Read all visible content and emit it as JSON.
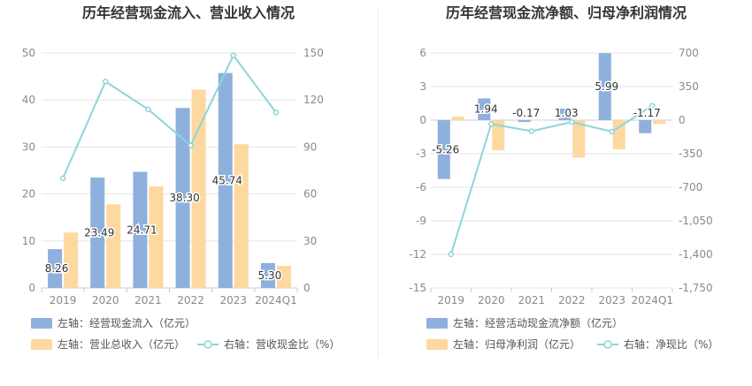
{
  "chart_data": [
    {
      "type": "bar+line",
      "title": "历年经营现金流入、营业收入情况",
      "categories": [
        "2019",
        "2020",
        "2021",
        "2022",
        "2023",
        "2024Q1"
      ],
      "y_left": {
        "ticks": [
          "0",
          "10",
          "20",
          "30",
          "40",
          "50"
        ],
        "ylim": [
          0,
          50
        ]
      },
      "y_right": {
        "ticks": [
          "0",
          "30",
          "60",
          "90",
          "120",
          "150"
        ],
        "ylim": [
          0,
          150
        ]
      },
      "series": [
        {
          "name": "左轴：经营现金流入（亿元）",
          "kind": "bar",
          "axis": "left",
          "color": "#8eb0dd",
          "values": [
            8.26,
            23.49,
            24.71,
            38.3,
            45.74,
            5.3
          ],
          "labels": [
            "8.26",
            "23.49",
            "24.71",
            "38.30",
            "45.74",
            "5.30"
          ]
        },
        {
          "name": "左轴：营业总收入（亿元）",
          "kind": "bar",
          "axis": "left",
          "color": "#fdd89f",
          "values": [
            11.8,
            17.8,
            21.6,
            42.2,
            30.6,
            4.7
          ]
        },
        {
          "name": "右轴：营收现金比（%）",
          "kind": "line",
          "axis": "right",
          "color": "#8dd5d9",
          "values": [
            70,
            131.8,
            114,
            91,
            148.5,
            112
          ]
        }
      ],
      "legend": {
        "position": "bottom"
      }
    },
    {
      "type": "bar+line",
      "title": "历年经营现金流净额、归母净利润情况",
      "categories": [
        "2019",
        "2020",
        "2021",
        "2022",
        "2023",
        "2024Q1"
      ],
      "y_left": {
        "ticks": [
          "-15",
          "-12",
          "-9",
          "-6",
          "-3",
          "0",
          "3",
          "6"
        ],
        "ylim": [
          -15,
          6
        ]
      },
      "y_right": {
        "ticks": [
          "-1,750",
          "-1,400",
          "-1,050",
          "-700",
          "-350",
          "0",
          "350",
          "700"
        ],
        "ylim": [
          -1750,
          700
        ]
      },
      "series": [
        {
          "name": "左轴：经营活动现金流净额（亿元）",
          "kind": "bar",
          "axis": "left",
          "color": "#8eb0dd",
          "values": [
            -5.26,
            1.94,
            -0.17,
            1.03,
            5.99,
            -1.17
          ],
          "labels": [
            "-5.26",
            "1.94",
            "-0.17",
            "1.03",
            "5.99",
            "-1.17"
          ]
        },
        {
          "name": "左轴：归母净利润（亿元）",
          "kind": "bar",
          "axis": "left",
          "color": "#fdd89f",
          "values": [
            0.32,
            -2.7,
            0,
            -3.35,
            -2.6,
            -0.35
          ]
        },
        {
          "name": "右轴：净现比（%）",
          "kind": "line",
          "axis": "right",
          "color": "#8dd5d9",
          "values": [
            -1400,
            -40,
            -115,
            -20,
            -120,
            150
          ]
        }
      ],
      "legend": {
        "position": "bottom"
      }
    }
  ]
}
